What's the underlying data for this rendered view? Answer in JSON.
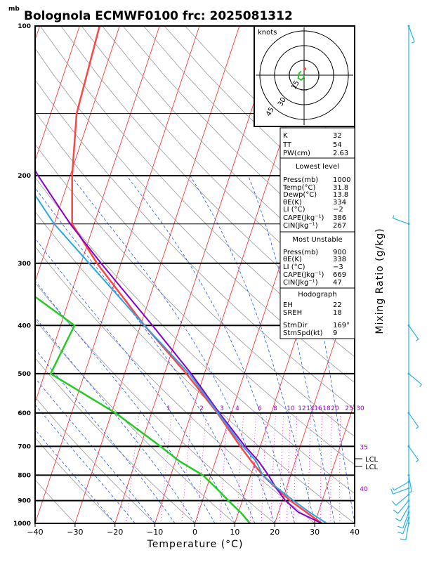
{
  "title": "Bolognola ECMWF0100  frc: 2025081312",
  "y_unit_label": "mb",
  "x_axis_label": "Temperature (°C)",
  "right_axis_label": "Mixing Ratio (g/kg)",
  "hodograph": {
    "unit_label": "knots",
    "rings": [
      "15",
      "30",
      "45"
    ]
  },
  "indices": [
    {
      "label": "K",
      "value": "32"
    },
    {
      "label": "TT",
      "value": "54"
    },
    {
      "label": "PW(cm)",
      "value": "2.63"
    }
  ],
  "lowest_level": {
    "heading": "Lowest level",
    "rows": [
      {
        "label": "Press(mb)",
        "value": "1000"
      },
      {
        "label": "Temp(°C)",
        "value": "31.8"
      },
      {
        "label": "Dewp(°C)",
        "value": "13.8"
      },
      {
        "label": "θE(K)",
        "value": "334"
      },
      {
        "label": "LI (°C)",
        "value": "−2"
      },
      {
        "label": "CAPE(Jkg⁻¹)",
        "value": "386"
      },
      {
        "label": "CIN(Jkg⁻¹)",
        "value": "267"
      }
    ]
  },
  "most_unstable": {
    "heading": "Most Unstable",
    "rows": [
      {
        "label": "Press(mb)",
        "value": "900"
      },
      {
        "label": "θE(K)",
        "value": "338"
      },
      {
        "label": "LI (°C)",
        "value": "−3"
      },
      {
        "label": "CAPE(Jkg⁻¹)",
        "value": "669"
      },
      {
        "label": "CIN(Jkg⁻¹)",
        "value": "47"
      }
    ]
  },
  "hodograph_params": {
    "heading": "Hodograph",
    "rows": [
      {
        "label": "EH",
        "value": "22"
      },
      {
        "label": "SREH",
        "value": "18"
      },
      {
        "label": "StmDir",
        "value": "169°"
      },
      {
        "label": "StmSpd(kt)",
        "value": "9"
      }
    ]
  },
  "lcl_labels": [
    "LCL",
    "LCL"
  ],
  "colors": {
    "temperature": "#ff4444",
    "dewpoint": "#22cc22",
    "parcel": "#8800cc",
    "virtual": "#2aa6e8",
    "isotherm": "#ff2222",
    "dry_adiabat": "#999999",
    "moist_adiabat": "#2255ff",
    "mixing_ratio": "#cc33cc",
    "wind": "#29b3e0"
  },
  "chart_data": {
    "type": "line",
    "chart_kind": "Skew-T log-P diagram",
    "xlim": [
      -40,
      40
    ],
    "ylim_pressure": [
      1000,
      100
    ],
    "x_ticks": [
      "−40",
      "−30",
      "−20",
      "−10",
      "0",
      "10",
      "20",
      "30",
      "40"
    ],
    "pressure_ticks": [
      "100",
      "200",
      "300",
      "400",
      "500",
      "600",
      "700",
      "800",
      "900",
      "1000"
    ],
    "pressure_levels": [
      1000,
      900,
      800,
      700,
      600,
      500,
      400,
      300,
      250,
      200,
      150,
      100
    ],
    "mixing_ratio_labels": [
      "1",
      "2",
      "3",
      "4",
      "6",
      "8",
      "10",
      "12",
      "14",
      "16",
      "18",
      "20",
      "25",
      "30",
      "35",
      "40"
    ],
    "series": [
      {
        "key": "temperature",
        "pressure": [
          1000,
          950,
          900,
          850,
          800,
          750,
          700,
          600,
          500,
          400,
          300,
          250,
          200,
          150,
          100
        ],
        "values": [
          31.8,
          27.0,
          22.0,
          17.5,
          13.0,
          9.0,
          5.0,
          -3.5,
          -14.5,
          -29.0,
          -46.0,
          -55.5,
          -59.5,
          -63.5,
          -65.0
        ]
      },
      {
        "key": "dewpoint",
        "pressure": [
          1000,
          950,
          900,
          850,
          800,
          750,
          700,
          600,
          500,
          400,
          300,
          250,
          200,
          150,
          100
        ],
        "values": [
          13.8,
          10.5,
          6.5,
          2.5,
          -2.0,
          -9.0,
          -15.0,
          -29.0,
          -48.5,
          -46.5,
          -73.0,
          -88.0,
          -95.0,
          -107.0,
          -118.0
        ]
      },
      {
        "key": "parcel",
        "pressure": [
          1000,
          950,
          900,
          850,
          800,
          750,
          700,
          600,
          500,
          400,
          300,
          250,
          200,
          150,
          100
        ],
        "values": [
          31.8,
          25.0,
          20.8,
          17.5,
          14.4,
          10.8,
          6.2,
          -3.0,
          -13.3,
          -27.0,
          -45.0,
          -56.0,
          -68.0,
          -82.0,
          -98.0
        ]
      },
      {
        "key": "virtual",
        "pressure": [
          1000,
          950,
          900,
          850,
          800,
          750,
          700,
          600,
          500,
          400,
          300,
          250,
          200,
          150,
          100
        ],
        "values": [
          33.0,
          27.8,
          22.8,
          17.8,
          13.0,
          10.2,
          5.6,
          -3.3,
          -13.8,
          -29.0,
          -48.0,
          -60.0,
          -72.0,
          -87.0,
          -103.0
        ]
      }
    ],
    "winds": [
      {
        "pressure": 1000,
        "direction": 190,
        "speed": 10
      },
      {
        "pressure": 975,
        "direction": 200,
        "speed": 10
      },
      {
        "pressure": 950,
        "direction": 200,
        "speed": 10
      },
      {
        "pressure": 925,
        "direction": 210,
        "speed": 10
      },
      {
        "pressure": 900,
        "direction": 220,
        "speed": 10
      },
      {
        "pressure": 875,
        "direction": 230,
        "speed": 10
      },
      {
        "pressure": 850,
        "direction": 250,
        "speed": 10
      },
      {
        "pressure": 825,
        "direction": 240,
        "speed": 5
      },
      {
        "pressure": 800,
        "direction": 170,
        "speed": 5
      },
      {
        "pressure": 700,
        "direction": 145,
        "speed": 5
      },
      {
        "pressure": 600,
        "direction": 145,
        "speed": 5
      },
      {
        "pressure": 500,
        "direction": 130,
        "speed": 5
      },
      {
        "pressure": 400,
        "direction": 145,
        "speed": 5
      },
      {
        "pressure": 250,
        "direction": 290,
        "speed": 5
      },
      {
        "pressure": 100,
        "direction": 160,
        "speed": 5
      }
    ],
    "hodograph_trace": [
      [
        0,
        0
      ],
      [
        -1,
        -3
      ],
      [
        -3,
        -5
      ],
      [
        -6,
        -3
      ],
      [
        -5,
        2
      ],
      [
        -3,
        4
      ]
    ]
  }
}
